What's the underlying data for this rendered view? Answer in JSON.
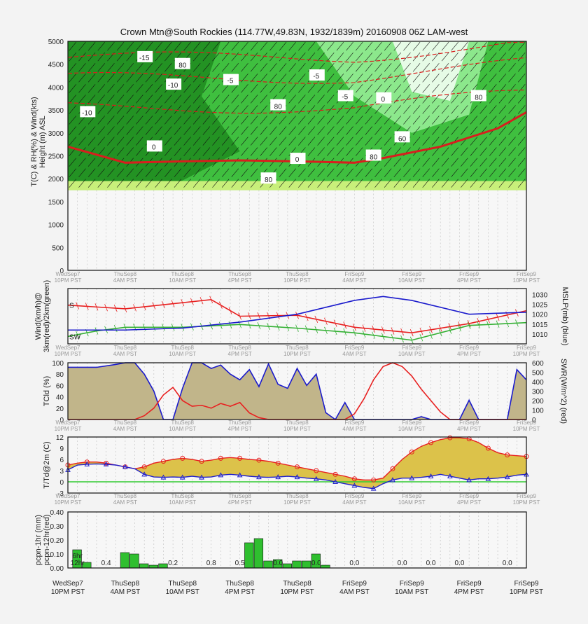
{
  "title": "Crown Mtn@South Rockies (114.77W,49.83N, 1932/1839m)  20160908  06Z  LAM-west",
  "time_labels": [
    [
      "WedSep7",
      "10PM PST"
    ],
    [
      "ThuSep8",
      "4AM PST"
    ],
    [
      "ThuSep8",
      "10AM PST"
    ],
    [
      "ThuSep8",
      "4PM PST"
    ],
    [
      "ThuSep8",
      "10PM PST"
    ],
    [
      "FriSep9",
      "4AM PST"
    ],
    [
      "FriSep9",
      "10AM PST"
    ],
    [
      "FriSep9",
      "4PM PST"
    ],
    [
      "FriSep9",
      "10PM PST"
    ]
  ],
  "chart_data": [
    {
      "id": "cross-section",
      "type": "heatmap",
      "ylabel": "T(C) & RH(%) & Wind(kts)\nHeight (m) ASL",
      "yticks": [
        0,
        500,
        1000,
        1500,
        2000,
        2500,
        3000,
        3500,
        4000,
        4500,
        5000
      ],
      "ylim": [
        0,
        5000
      ],
      "terrain_height": 1750,
      "freezing_level": [
        [
          0,
          2700
        ],
        [
          6,
          2350
        ],
        [
          12,
          2380
        ],
        [
          18,
          2400
        ],
        [
          24,
          2380
        ],
        [
          30,
          2350
        ],
        [
          33,
          2450
        ],
        [
          39,
          2700
        ],
        [
          45,
          3100
        ],
        [
          48,
          3450
        ]
      ],
      "temp_labels": [
        "-15",
        "-10",
        "-10",
        "-5",
        "-5",
        "-5",
        "0",
        "0",
        "0"
      ],
      "rh_labels": [
        "80",
        "80",
        "80",
        "60",
        "80",
        "80"
      ],
      "colors": {
        "dark_green": "#1e8a1e",
        "mid_green": "#3fbf3f",
        "light_green": "#8ce88c",
        "pale": "#e6fbe6",
        "temp_line": "#d81e1e"
      }
    },
    {
      "id": "wind-mslp",
      "type": "line",
      "ylabel_left": "Wind(km/h)@\n3km(red)/2km(green)",
      "ylabel_right": "MSLP(mb) (blue)",
      "yticks_right": [
        1010,
        1015,
        1020,
        1025,
        1030
      ],
      "ylim_right": [
        1005,
        1033
      ],
      "series": [
        {
          "name": "3km",
          "color": "#e82020",
          "values": [
            [
              0,
              42
            ],
            [
              6,
              38
            ],
            [
              15,
              48
            ],
            [
              18,
              30
            ],
            [
              24,
              31
            ],
            [
              30,
              18
            ],
            [
              36,
              12
            ],
            [
              42,
              22
            ],
            [
              48,
              36
            ]
          ],
          "label": "S"
        },
        {
          "name": "2km",
          "color": "#33b033",
          "values": [
            [
              0,
              8
            ],
            [
              3,
              14
            ],
            [
              6,
              18
            ],
            [
              12,
              18
            ],
            [
              18,
              21
            ],
            [
              24,
              17
            ],
            [
              30,
              12
            ],
            [
              36,
              4
            ],
            [
              42,
              20
            ],
            [
              48,
              23
            ]
          ],
          "label": "SW"
        },
        {
          "name": "MSLP",
          "color": "#1a1acc",
          "values": [
            [
              0,
              1012
            ],
            [
              6,
              1012
            ],
            [
              12,
              1013
            ],
            [
              18,
              1016
            ],
            [
              24,
              1020
            ],
            [
              30,
              1027
            ],
            [
              33,
              1029
            ],
            [
              36,
              1027
            ],
            [
              42,
              1020
            ],
            [
              48,
              1021
            ]
          ]
        }
      ]
    },
    {
      "id": "cloud-swr",
      "type": "area",
      "ylabel_left": "TCld (%)",
      "ylabel_right": "SWR(W/m^2) (red)",
      "yticks_left": [
        0,
        20,
        40,
        60,
        80,
        100
      ],
      "yticks_right": [
        0,
        100,
        200,
        300,
        400,
        500,
        600
      ],
      "cloud": [
        [
          0,
          92
        ],
        [
          3,
          92
        ],
        [
          5,
          97
        ],
        [
          6,
          100
        ],
        [
          7,
          100
        ],
        [
          8,
          80
        ],
        [
          9,
          50
        ],
        [
          10,
          0
        ],
        [
          11,
          0
        ],
        [
          12,
          55
        ],
        [
          13,
          100
        ],
        [
          14,
          100
        ],
        [
          15,
          90
        ],
        [
          16,
          96
        ],
        [
          17,
          80
        ],
        [
          18,
          70
        ],
        [
          19,
          88
        ],
        [
          20,
          58
        ],
        [
          21,
          98
        ],
        [
          22,
          62
        ],
        [
          23,
          55
        ],
        [
          24,
          90
        ],
        [
          25,
          60
        ],
        [
          26,
          80
        ],
        [
          27,
          12
        ],
        [
          28,
          0
        ],
        [
          29,
          30
        ],
        [
          30,
          0
        ],
        [
          36,
          0
        ],
        [
          37,
          5
        ],
        [
          38,
          0
        ],
        [
          39,
          0
        ],
        [
          40,
          0
        ],
        [
          41,
          0
        ],
        [
          42,
          34
        ],
        [
          43,
          0
        ],
        [
          44,
          0
        ],
        [
          45,
          0
        ],
        [
          46,
          0
        ],
        [
          47,
          88
        ],
        [
          48,
          70
        ]
      ],
      "swr": [
        [
          0,
          0
        ],
        [
          5,
          0
        ],
        [
          7,
          0
        ],
        [
          8,
          40
        ],
        [
          9,
          120
        ],
        [
          10,
          260
        ],
        [
          11,
          340
        ],
        [
          12,
          200
        ],
        [
          13,
          140
        ],
        [
          14,
          150
        ],
        [
          15,
          120
        ],
        [
          16,
          170
        ],
        [
          17,
          140
        ],
        [
          18,
          180
        ],
        [
          19,
          70
        ],
        [
          20,
          20
        ],
        [
          21,
          0
        ],
        [
          29,
          0
        ],
        [
          30,
          60
        ],
        [
          31,
          220
        ],
        [
          32,
          420
        ],
        [
          33,
          560
        ],
        [
          34,
          600
        ],
        [
          35,
          560
        ],
        [
          36,
          460
        ],
        [
          37,
          320
        ],
        [
          38,
          200
        ],
        [
          39,
          80
        ],
        [
          40,
          0
        ],
        [
          48,
          0
        ]
      ],
      "colors": {
        "cloud_fill": "#c1b58a",
        "cloud_line": "#1a1acc",
        "swr": "#e82020"
      }
    },
    {
      "id": "temp-dew",
      "type": "line",
      "ylabel": "T/Td@2m (C)",
      "yticks": [
        -3,
        0,
        3,
        6,
        9,
        12
      ],
      "ylim": [
        -3,
        12
      ],
      "series": [
        {
          "name": "T",
          "color": "#e82020",
          "values": [
            4.5,
            5,
            5.3,
            5.3,
            5,
            4.5,
            4,
            3.5,
            4,
            5,
            5.5,
            6,
            6.3,
            6,
            5.5,
            5.8,
            6.3,
            6.5,
            6.3,
            6,
            5.8,
            5.5,
            5,
            4.5,
            4,
            3.5,
            3,
            2.5,
            2,
            1.5,
            0.8,
            0.5,
            0.5,
            1,
            3.5,
            6,
            8,
            9.5,
            10.5,
            11.3,
            11.8,
            11.8,
            11.5,
            10.5,
            9,
            7.8,
            7.2,
            7,
            6.8
          ]
        },
        {
          "name": "Td",
          "color": "#2020cc",
          "values": [
            3.2,
            4.5,
            4.7,
            4.8,
            4.7,
            4.5,
            4,
            3.5,
            2,
            1.3,
            1.2,
            1.3,
            1.2,
            1.5,
            1.2,
            1.3,
            1.8,
            2,
            1.8,
            1.5,
            1.3,
            1.2,
            1.3,
            1.5,
            1.3,
            1,
            0.8,
            0.5,
            0,
            -0.5,
            -1,
            -1.5,
            -1.8,
            -0.5,
            0.5,
            1,
            1,
            1.2,
            1.5,
            2,
            1.5,
            1,
            0.5,
            0.8,
            0.8,
            1,
            1.3,
            1.8,
            2
          ]
        }
      ],
      "colors": {
        "fill": "#dcc24a",
        "zero_line": "#33cc33"
      }
    },
    {
      "id": "precip",
      "type": "bar",
      "ylabel": "pcpn-1hr (mm)\npcpn-12hr(red)",
      "yticks": [
        0,
        0.1,
        0.2,
        0.3,
        0.4
      ],
      "yticklabels": [
        "0.00",
        "0.10",
        "0.20",
        "0.30",
        "0.40"
      ],
      "ylim": [
        0,
        0.4
      ],
      "bars": [
        [
          1,
          0.13
        ],
        [
          2,
          0.04
        ],
        [
          3,
          0.0
        ],
        [
          6,
          0.11
        ],
        [
          7,
          0.1
        ],
        [
          8,
          0.03
        ],
        [
          9,
          0.02
        ],
        [
          10,
          0.03
        ],
        [
          19,
          0.18
        ],
        [
          20,
          0.21
        ],
        [
          21,
          0.05
        ],
        [
          22,
          0.06
        ],
        [
          23,
          0.03
        ],
        [
          24,
          0.05
        ],
        [
          25,
          0.05
        ],
        [
          26,
          0.1
        ],
        [
          27,
          0.02
        ]
      ],
      "bar_color": "#2fbf2f",
      "labels_12h": [
        {
          "hour": 1,
          "text": "12hr",
          "red": true
        },
        {
          "hour": 4,
          "text": "0.4",
          "red": false
        },
        {
          "hour": 11,
          "text": "0.2",
          "red": false
        },
        {
          "hour": 15,
          "text": "0.8",
          "red": true
        },
        {
          "hour": 18,
          "text": "0.5",
          "red": false
        },
        {
          "hour": 22,
          "text": "0.0",
          "red": false
        },
        {
          "hour": 26,
          "text": "0.0",
          "red": true
        },
        {
          "hour": 30,
          "text": "0.0",
          "red": false
        },
        {
          "hour": 35,
          "text": "0.0",
          "red": false
        },
        {
          "hour": 38,
          "text": "0.0",
          "red": true
        },
        {
          "hour": 41,
          "text": "0.0",
          "red": false
        },
        {
          "hour": 46,
          "text": "0.0",
          "red": false
        }
      ],
      "sub_label": "6hr"
    }
  ]
}
